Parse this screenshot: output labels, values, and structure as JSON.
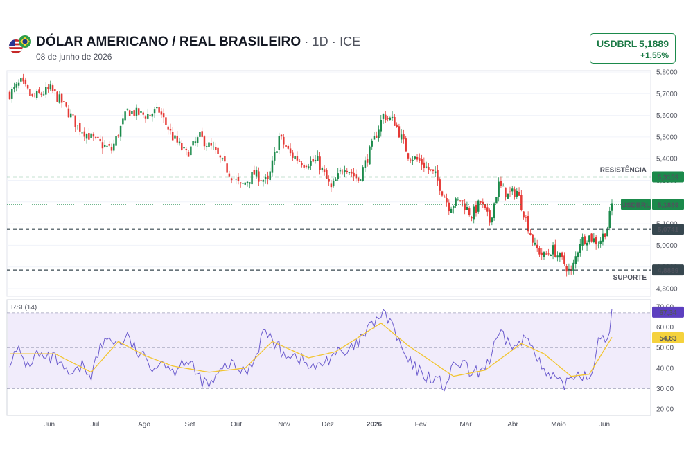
{
  "header": {
    "title": "DÓLAR AMERICANO / REAL BRASILEIRO",
    "meta": " · 1D · ICE",
    "date": "08 de junho de 2026",
    "flag_icon": "usa-brazil-flags-icon"
  },
  "ticker": {
    "symbol": "USDBRL",
    "price": "5,1889",
    "change": "+1,55%"
  },
  "colors": {
    "up": "#26a69a",
    "up_candle": "#1b8a4b",
    "down": "#e53935",
    "rsi_line": "#6a5acd",
    "rsi_ma": "#f2c530",
    "rsi_band": "#f1ecfb",
    "support": "#37474f",
    "resistance": "#1b8a4b"
  },
  "chart_data": [
    {
      "type": "candlestick",
      "title": "DÓLAR AMERICANO / REAL BRASILEIRO · 1D · ICE",
      "y_ticks": [
        "5,8000",
        "5,7000",
        "5,6000",
        "5,5000",
        "5,4000",
        "5,3000",
        "5,2000",
        "5,1000",
        "5,0000",
        "4,9000",
        "4,8000"
      ],
      "ylim": [
        4.8,
        5.8
      ],
      "x_ticks": [
        "Jun",
        "Jul",
        "Ago",
        "Set",
        "Out",
        "Nov",
        "Dez",
        "2026",
        "Fev",
        "Mar",
        "Abr",
        "Maio",
        "Jun"
      ],
      "waypoints": [
        [
          0,
          5.7
        ],
        [
          5,
          5.75
        ],
        [
          10,
          5.68
        ],
        [
          18,
          5.72
        ],
        [
          23,
          5.66
        ],
        [
          30,
          5.55
        ],
        [
          38,
          5.48
        ],
        [
          45,
          5.44
        ],
        [
          52,
          5.62
        ],
        [
          60,
          5.6
        ],
        [
          66,
          5.62
        ],
        [
          72,
          5.5
        ],
        [
          78,
          5.42
        ],
        [
          84,
          5.5
        ],
        [
          90,
          5.44
        ],
        [
          96,
          5.35
        ],
        [
          102,
          5.27
        ],
        [
          108,
          5.33
        ],
        [
          114,
          5.29
        ],
        [
          119,
          5.5
        ],
        [
          124,
          5.42
        ],
        [
          130,
          5.38
        ],
        [
          136,
          5.39
        ],
        [
          142,
          5.26
        ],
        [
          148,
          5.37
        ],
        [
          154,
          5.3
        ],
        [
          160,
          5.46
        ],
        [
          165,
          5.6
        ],
        [
          170,
          5.57
        ],
        [
          176,
          5.42
        ],
        [
          182,
          5.38
        ],
        [
          188,
          5.32
        ],
        [
          194,
          5.18
        ],
        [
          199,
          5.21
        ],
        [
          204,
          5.14
        ],
        [
          208,
          5.2
        ],
        [
          212,
          5.11
        ],
        [
          216,
          5.28
        ],
        [
          220,
          5.23
        ],
        [
          224,
          5.25
        ],
        [
          228,
          5.12
        ],
        [
          232,
          4.99
        ],
        [
          236,
          4.95
        ],
        [
          240,
          4.98
        ],
        [
          244,
          4.93
        ],
        [
          248,
          4.87
        ],
        [
          252,
          5.02
        ],
        [
          256,
          5.04
        ],
        [
          260,
          5.01
        ],
        [
          264,
          5.08
        ],
        [
          266,
          5.19
        ]
      ],
      "series": [
        {
          "name": "USDBRL",
          "last": 5.1889
        }
      ],
      "annotations": [
        {
          "label": "RESISTÊNCIA",
          "value": 5.3159,
          "tag": "5,3159"
        },
        {
          "label": "",
          "value": 5.0741,
          "tag": "5,0741"
        },
        {
          "label": "SUPORTE",
          "value": 4.8859,
          "tag": "4,8859"
        },
        {
          "label": "USDBRL",
          "value": 5.1889,
          "tag": "5,1889"
        }
      ]
    },
    {
      "type": "line",
      "title": "RSI (14)",
      "y_ticks": [
        "70,00",
        "60,00",
        "50,00",
        "40,00",
        "30,00",
        "20,00"
      ],
      "ylim": [
        20,
        70
      ],
      "bands": [
        30,
        50,
        67
      ],
      "series": [
        {
          "name": "RSI",
          "last_tag": "67,34"
        },
        {
          "name": "MA",
          "last_tag": "54,83"
        }
      ],
      "rsi_waypoints": [
        [
          0,
          44
        ],
        [
          4,
          48
        ],
        [
          8,
          41
        ],
        [
          12,
          47
        ],
        [
          16,
          44
        ],
        [
          20,
          45
        ],
        [
          24,
          38
        ],
        [
          28,
          36
        ],
        [
          32,
          41
        ],
        [
          36,
          37
        ],
        [
          40,
          50
        ],
        [
          44,
          55
        ],
        [
          48,
          52
        ],
        [
          52,
          55
        ],
        [
          56,
          48
        ],
        [
          60,
          44
        ],
        [
          64,
          41
        ],
        [
          68,
          44
        ],
        [
          72,
          38
        ],
        [
          76,
          44
        ],
        [
          80,
          41
        ],
        [
          84,
          35
        ],
        [
          88,
          31
        ],
        [
          92,
          36
        ],
        [
          96,
          42
        ],
        [
          100,
          40
        ],
        [
          104,
          38
        ],
        [
          108,
          44
        ],
        [
          112,
          58
        ],
        [
          116,
          54
        ],
        [
          120,
          48
        ],
        [
          124,
          47
        ],
        [
          128,
          45
        ],
        [
          132,
          41
        ],
        [
          136,
          40
        ],
        [
          140,
          44
        ],
        [
          144,
          48
        ],
        [
          148,
          46
        ],
        [
          152,
          50
        ],
        [
          156,
          55
        ],
        [
          160,
          61
        ],
        [
          164,
          66
        ],
        [
          168,
          64
        ],
        [
          172,
          52
        ],
        [
          176,
          43
        ],
        [
          180,
          39
        ],
        [
          184,
          36
        ],
        [
          188,
          35
        ],
        [
          192,
          31
        ],
        [
          196,
          40
        ],
        [
          200,
          43
        ],
        [
          204,
          36
        ],
        [
          208,
          39
        ],
        [
          212,
          44
        ],
        [
          216,
          56
        ],
        [
          220,
          53
        ],
        [
          224,
          50
        ],
        [
          228,
          55
        ],
        [
          232,
          50
        ],
        [
          236,
          37
        ],
        [
          240,
          35
        ],
        [
          244,
          31
        ],
        [
          248,
          36
        ],
        [
          252,
          38
        ],
        [
          256,
          35
        ],
        [
          260,
          52
        ],
        [
          264,
          54
        ],
        [
          266,
          67
        ]
      ],
      "ma_waypoints": [
        [
          0,
          47
        ],
        [
          20,
          47
        ],
        [
          36,
          38
        ],
        [
          48,
          53
        ],
        [
          60,
          46
        ],
        [
          72,
          41
        ],
        [
          88,
          38
        ],
        [
          104,
          40
        ],
        [
          116,
          53
        ],
        [
          132,
          45
        ],
        [
          144,
          48
        ],
        [
          164,
          62
        ],
        [
          176,
          51
        ],
        [
          196,
          36
        ],
        [
          210,
          39
        ],
        [
          226,
          52
        ],
        [
          236,
          47
        ],
        [
          248,
          36
        ],
        [
          256,
          37
        ],
        [
          266,
          55
        ]
      ]
    }
  ]
}
